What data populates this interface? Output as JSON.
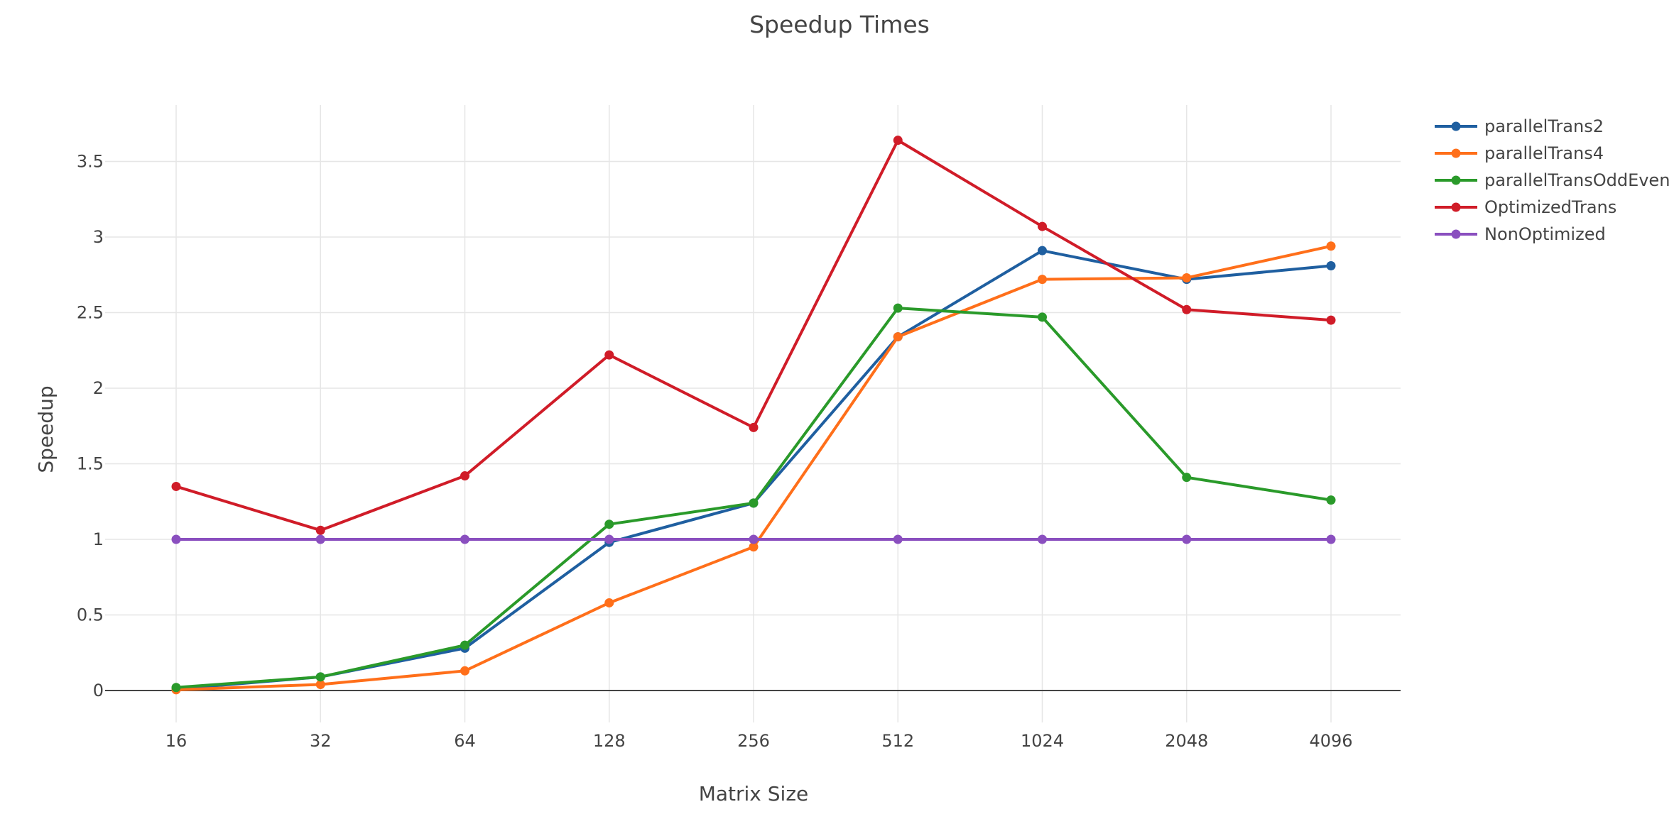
{
  "chart_data": {
    "type": "line",
    "title": "Speedup Times",
    "xlabel": "Matrix Size",
    "ylabel": "Speedup",
    "categories": [
      "16",
      "32",
      "64",
      "128",
      "256",
      "512",
      "1024",
      "2048",
      "4096"
    ],
    "ylim": [
      -0.15,
      3.9
    ],
    "yticks": [
      0,
      0.5,
      1,
      1.5,
      2,
      2.5,
      3,
      3.5
    ],
    "ytick_labels": [
      "0",
      "0.5",
      "1",
      "1.5",
      "2",
      "2.5",
      "3",
      "3.5"
    ],
    "grid": true,
    "legend_position": "top-right",
    "series": [
      {
        "name": "parallelTrans2",
        "color": "#1f5fa0",
        "values": [
          0.01,
          0.09,
          0.28,
          0.98,
          1.24,
          2.34,
          2.91,
          2.72,
          2.81
        ]
      },
      {
        "name": "parallelTrans4",
        "color": "#ff6f1a",
        "values": [
          0.005,
          0.04,
          0.13,
          0.58,
          0.95,
          2.34,
          2.72,
          2.73,
          2.94
        ]
      },
      {
        "name": "parallelTransOddEven",
        "color": "#2a9a2a",
        "values": [
          0.02,
          0.09,
          0.3,
          1.1,
          1.24,
          2.53,
          2.47,
          1.41,
          1.26
        ]
      },
      {
        "name": "OptimizedTrans",
        "color": "#d01c28",
        "values": [
          1.35,
          1.06,
          1.42,
          2.22,
          1.74,
          3.64,
          3.07,
          2.52,
          2.45
        ]
      },
      {
        "name": "NonOptimized",
        "color": "#8a4fbf",
        "values": [
          1,
          1,
          1,
          1,
          1,
          1,
          1,
          1,
          1
        ]
      }
    ]
  }
}
